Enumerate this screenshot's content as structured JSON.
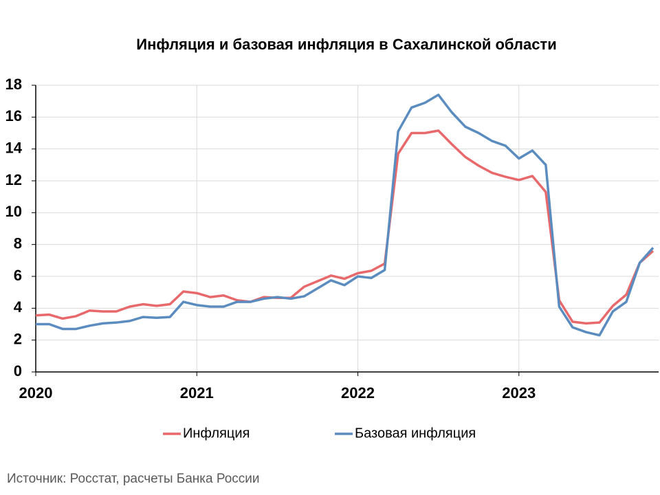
{
  "chart_data": {
    "type": "line",
    "title": "Инфляция и базовая инфляция в Сахалинской области",
    "source": "Источник: Росстат, расчеты Банка России",
    "categories": [
      "2020",
      null,
      null,
      null,
      null,
      null,
      null,
      null,
      null,
      null,
      null,
      null,
      "2021",
      null,
      null,
      null,
      null,
      null,
      null,
      null,
      null,
      null,
      null,
      null,
      "2022",
      null,
      null,
      null,
      null,
      null,
      null,
      null,
      null,
      null,
      null,
      null,
      "2023",
      null,
      null,
      null,
      null,
      null,
      null,
      null,
      null,
      null,
      null
    ],
    "series": [
      {
        "name": "Инфляция",
        "color": "#e8696b",
        "values": [
          3.55,
          3.6,
          3.35,
          3.5,
          3.85,
          3.8,
          3.8,
          4.1,
          4.25,
          4.15,
          4.25,
          5.05,
          4.95,
          4.7,
          4.8,
          4.5,
          4.4,
          4.7,
          4.65,
          4.65,
          5.35,
          5.7,
          6.05,
          5.85,
          6.2,
          6.35,
          6.8,
          13.7,
          15.0,
          15.0,
          15.15,
          14.3,
          13.5,
          12.95,
          12.5,
          12.25,
          12.05,
          12.3,
          11.3,
          4.5,
          3.15,
          3.05,
          3.1,
          4.15,
          4.85,
          6.85,
          7.6
        ]
      },
      {
        "name": "Базовая инфляция",
        "color": "#5b8cc0",
        "values": [
          3.0,
          3.0,
          2.7,
          2.7,
          2.9,
          3.05,
          3.1,
          3.2,
          3.45,
          3.4,
          3.45,
          4.4,
          4.2,
          4.1,
          4.1,
          4.4,
          4.4,
          4.6,
          4.7,
          4.6,
          4.75,
          5.25,
          5.75,
          5.45,
          6.0,
          5.9,
          6.4,
          15.1,
          16.6,
          16.9,
          17.4,
          16.3,
          15.4,
          15.0,
          14.5,
          14.2,
          13.4,
          13.9,
          13.0,
          4.1,
          2.8,
          2.5,
          2.3,
          3.8,
          4.4,
          6.85,
          7.8
        ]
      }
    ],
    "ylim": [
      0,
      18
    ],
    "yticks": [
      0,
      2,
      4,
      6,
      8,
      10,
      12,
      14,
      16,
      18
    ],
    "grid": true,
    "legend": "bottom"
  }
}
